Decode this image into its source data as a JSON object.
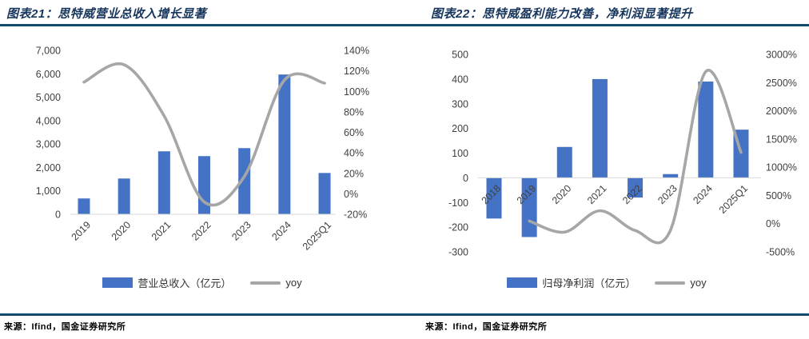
{
  "style": {
    "bar_color": "#4472C4",
    "line_color": "#A6A6A6",
    "rule_color": "#114A6E",
    "tick_color": "#404040",
    "axis_line_color": "#D9D9D9",
    "title_color": "#17365D"
  },
  "charts": [
    {
      "title": "图表21：思特威营业总收入增长显著",
      "source": "来源：Ifind，国金证券研究所",
      "legend": [
        {
          "label": "营业总收入（亿元）",
          "type": "bar"
        },
        {
          "label": "yoy",
          "type": "line"
        }
      ],
      "chart_data": {
        "type": "bar+line",
        "categories": [
          "2019",
          "2020",
          "2021",
          "2022",
          "2023",
          "2024",
          "2025Q1"
        ],
        "series": [
          {
            "name": "营业总收入（亿元）",
            "type": "bar",
            "axis": "left",
            "values": [
              676,
              1527,
              2689,
              2484,
              2825,
              5969,
              1764
            ]
          },
          {
            "name": "yoy",
            "type": "line",
            "axis": "right",
            "values": [
              109,
              126,
              76,
              -8,
              17,
              111,
              108
            ]
          }
        ],
        "left_axis": {
          "min": 0,
          "max": 7000,
          "ticks": [
            "7,000",
            "6,000",
            "5,000",
            "4,000",
            "3,000",
            "2,000",
            "1,000",
            "0"
          ]
        },
        "right_axis": {
          "min": -20,
          "max": 140,
          "unit": "%",
          "ticks": [
            "140%",
            "120%",
            "100%",
            "80%",
            "60%",
            "40%",
            "20%",
            "0%",
            "-20%"
          ]
        },
        "grid": false,
        "legend_position": "bottom"
      }
    },
    {
      "title": "图表22：思特威盈利能力改善，净利润显著提升",
      "source": "来源：Ifind，国金证券研究所",
      "legend": [
        {
          "label": "归母净利润（亿元）",
          "type": "bar"
        },
        {
          "label": "yoy",
          "type": "line"
        }
      ],
      "chart_data": {
        "type": "bar+line",
        "categories": [
          "2018",
          "2019",
          "2020",
          "2021",
          "2022",
          "2023",
          "2024",
          "2025Q1"
        ],
        "series": [
          {
            "name": "归母净利润（亿元）",
            "type": "bar",
            "axis": "left",
            "values": [
              -165,
              -240,
              125,
              400,
              -80,
              15,
              390,
              195
            ]
          },
          {
            "name": "yoy",
            "type": "line",
            "axis": "right",
            "values": [
              null,
              46,
              -150,
              228,
              -121,
              -117,
              2694,
              1264
            ]
          }
        ],
        "left_axis": {
          "min": -300,
          "max": 500,
          "ticks": [
            "500",
            "400",
            "300",
            "200",
            "100",
            "0",
            "-100",
            "-200",
            "-300"
          ]
        },
        "right_axis": {
          "min": -500,
          "max": 3000,
          "unit": "%",
          "ticks": [
            "3000%",
            "2500%",
            "2000%",
            "1500%",
            "1000%",
            "500%",
            "0%",
            "-500%"
          ]
        },
        "grid": false,
        "legend_position": "bottom"
      }
    }
  ]
}
